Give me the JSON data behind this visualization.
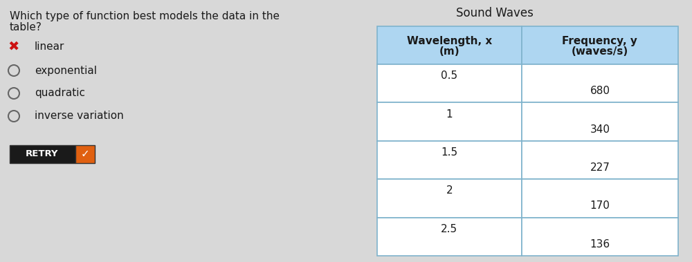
{
  "title": "Sound Waves",
  "question_line1": "Which type of function best models the data in the",
  "question_line2": "table?",
  "options": [
    {
      "symbol": "x",
      "text": "linear",
      "selected": true
    },
    {
      "symbol": "o",
      "text": "exponential",
      "selected": false
    },
    {
      "symbol": "o",
      "text": "quadratic",
      "selected": false
    },
    {
      "symbol": "o",
      "text": "inverse variation",
      "selected": false
    }
  ],
  "retry_label": "RETRY",
  "col1_header_line1": "Wavelength, x",
  "col1_header_line2": "(m)",
  "col2_header_line1": "Frequency, y",
  "col2_header_line2": "(waves/s)",
  "wavelengths": [
    "0.5",
    "1",
    "1.5",
    "2",
    "2.5"
  ],
  "frequencies": [
    "680",
    "340",
    "227",
    "170",
    "136"
  ],
  "header_bg": "#aed6f1",
  "row_bg_white": "#ffffff",
  "row_bg_light": "#f2f2f2",
  "table_border": "#7fb3cc",
  "bg_color": "#d8d8d8",
  "text_color": "#1a1a1a",
  "title_fontsize": 12,
  "question_fontsize": 11,
  "option_fontsize": 11,
  "table_fontsize": 11,
  "retry_bg": "#1a1a1a",
  "retry_check_bg": "#e06010",
  "x_color": "#cc1111",
  "circle_color": "#666666"
}
